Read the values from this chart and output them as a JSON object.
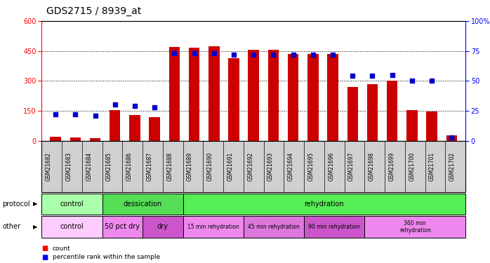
{
  "title": "GDS2715 / 8939_at",
  "samples": [
    "GSM21682",
    "GSM21683",
    "GSM21684",
    "GSM21685",
    "GSM21686",
    "GSM21687",
    "GSM21688",
    "GSM21689",
    "GSM21690",
    "GSM21691",
    "GSM21692",
    "GSM21693",
    "GSM21694",
    "GSM21695",
    "GSM21696",
    "GSM21697",
    "GSM21698",
    "GSM21699",
    "GSM21700",
    "GSM21701",
    "GSM21702"
  ],
  "counts": [
    20,
    18,
    14,
    155,
    130,
    120,
    470,
    465,
    475,
    415,
    455,
    455,
    435,
    435,
    435,
    270,
    285,
    300,
    155,
    145,
    28
  ],
  "percentiles": [
    22,
    22,
    21,
    30,
    29,
    28,
    73,
    73,
    73,
    72,
    72,
    72,
    72,
    72,
    72,
    54,
    54,
    55,
    50,
    50,
    3
  ],
  "left_ylim": [
    0,
    600
  ],
  "right_ylim": [
    0,
    100
  ],
  "left_yticks": [
    0,
    150,
    300,
    450,
    600
  ],
  "right_yticks": [
    0,
    25,
    50,
    75,
    100
  ],
  "bar_color": "#cc0000",
  "dot_color": "#0000cc",
  "bg_color": "#ffffff",
  "ax_facecolor": "#ffffff",
  "protocol_groups": [
    {
      "label": "control",
      "start": 0,
      "end": 3,
      "color": "#aaffaa"
    },
    {
      "label": "dessication",
      "start": 3,
      "end": 7,
      "color": "#55dd55"
    },
    {
      "label": "rehydration",
      "start": 7,
      "end": 21,
      "color": "#55ee55"
    }
  ],
  "other_groups": [
    {
      "label": "control",
      "start": 0,
      "end": 3,
      "color": "#ffccff"
    },
    {
      "label": "50 pct dry",
      "start": 3,
      "end": 5,
      "color": "#ee88ee"
    },
    {
      "label": "dry",
      "start": 5,
      "end": 7,
      "color": "#cc55cc"
    },
    {
      "label": "15 min rehydration",
      "start": 7,
      "end": 10,
      "color": "#ee88ee"
    },
    {
      "label": "45 min rehydration",
      "start": 10,
      "end": 13,
      "color": "#dd77dd"
    },
    {
      "label": "90 min rehydration",
      "start": 13,
      "end": 16,
      "color": "#cc55cc"
    },
    {
      "label": "360 min\nrehydration",
      "start": 16,
      "end": 21,
      "color": "#ee88ee"
    }
  ],
  "title_fontsize": 10,
  "tick_fontsize": 7,
  "bar_width": 0.55
}
